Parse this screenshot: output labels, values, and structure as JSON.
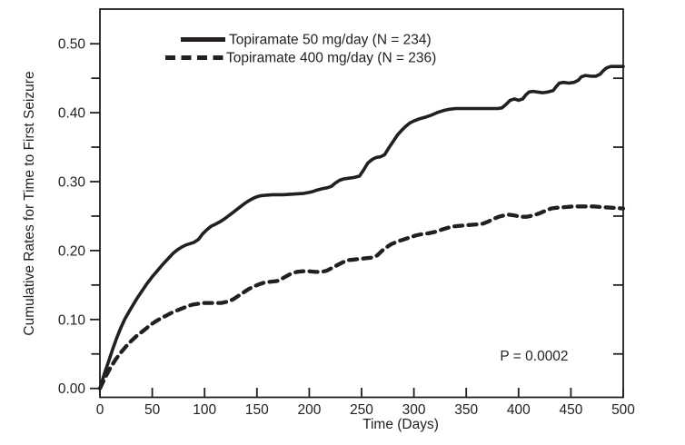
{
  "chart_data": {
    "type": "line",
    "title": "",
    "xlabel": "Time (Days)",
    "ylabel": "Cumulative Rates for Time to First Seizure",
    "annotation": "P = 0.0002",
    "xlim": [
      0,
      500
    ],
    "ylim": [
      0,
      0.55
    ],
    "grid": false,
    "legend_position": "top-left-inside",
    "line_color": "#231f20",
    "x_ticks": [
      0,
      50,
      100,
      150,
      200,
      250,
      300,
      350,
      400,
      450,
      500
    ],
    "x_tick_labels": [
      "0",
      "50",
      "100",
      "150",
      "200",
      "250",
      "300",
      "350",
      "400",
      "450",
      "500"
    ],
    "y_ticks": [
      0,
      0.1,
      0.2,
      0.3,
      0.4,
      0.5
    ],
    "y_tick_labels": [
      "0.00",
      "0.10",
      "0.20",
      "0.30",
      "0.40",
      "0.50"
    ],
    "y_minor_ticks": [
      0.05,
      0.15,
      0.25,
      0.35,
      0.45
    ],
    "right_axis_ticks": [
      0.05,
      0.15,
      0.25,
      0.35,
      0.45
    ],
    "series": [
      {
        "name": "Topiramate 50 mg/day (N = 234)",
        "style": "solid",
        "points": [
          [
            0,
            0
          ],
          [
            4,
            0.02
          ],
          [
            8,
            0.038
          ],
          [
            12,
            0.056
          ],
          [
            16,
            0.073
          ],
          [
            20,
            0.088
          ],
          [
            24,
            0.101
          ],
          [
            28,
            0.112
          ],
          [
            32,
            0.122
          ],
          [
            36,
            0.132
          ],
          [
            40,
            0.141
          ],
          [
            45,
            0.152
          ],
          [
            50,
            0.162
          ],
          [
            55,
            0.171
          ],
          [
            60,
            0.18
          ],
          [
            65,
            0.188
          ],
          [
            70,
            0.196
          ],
          [
            74,
            0.201
          ],
          [
            78,
            0.205
          ],
          [
            82,
            0.208
          ],
          [
            86,
            0.21
          ],
          [
            90,
            0.212
          ],
          [
            94,
            0.216
          ],
          [
            98,
            0.224
          ],
          [
            102,
            0.23
          ],
          [
            106,
            0.235
          ],
          [
            110,
            0.238
          ],
          [
            115,
            0.242
          ],
          [
            120,
            0.247
          ],
          [
            126,
            0.254
          ],
          [
            132,
            0.261
          ],
          [
            138,
            0.268
          ],
          [
            143,
            0.273
          ],
          [
            148,
            0.277
          ],
          [
            152,
            0.279
          ],
          [
            156,
            0.28
          ],
          [
            165,
            0.281
          ],
          [
            175,
            0.281
          ],
          [
            185,
            0.282
          ],
          [
            195,
            0.283
          ],
          [
            202,
            0.285
          ],
          [
            208,
            0.288
          ],
          [
            213,
            0.29
          ],
          [
            217,
            0.291
          ],
          [
            221,
            0.293
          ],
          [
            225,
            0.298
          ],
          [
            229,
            0.302
          ],
          [
            233,
            0.304
          ],
          [
            238,
            0.305
          ],
          [
            243,
            0.306
          ],
          [
            248,
            0.308
          ],
          [
            252,
            0.317
          ],
          [
            256,
            0.327
          ],
          [
            260,
            0.332
          ],
          [
            264,
            0.335
          ],
          [
            268,
            0.336
          ],
          [
            272,
            0.339
          ],
          [
            276,
            0.349
          ],
          [
            280,
            0.358
          ],
          [
            284,
            0.367
          ],
          [
            288,
            0.374
          ],
          [
            292,
            0.38
          ],
          [
            296,
            0.385
          ],
          [
            300,
            0.388
          ],
          [
            305,
            0.391
          ],
          [
            310,
            0.393
          ],
          [
            316,
            0.396
          ],
          [
            322,
            0.4
          ],
          [
            328,
            0.403
          ],
          [
            334,
            0.405
          ],
          [
            340,
            0.406
          ],
          [
            350,
            0.406
          ],
          [
            360,
            0.406
          ],
          [
            370,
            0.406
          ],
          [
            380,
            0.406
          ],
          [
            384,
            0.407
          ],
          [
            388,
            0.412
          ],
          [
            392,
            0.418
          ],
          [
            396,
            0.42
          ],
          [
            400,
            0.418
          ],
          [
            404,
            0.42
          ],
          [
            407,
            0.426
          ],
          [
            410,
            0.43
          ],
          [
            414,
            0.431
          ],
          [
            418,
            0.43
          ],
          [
            423,
            0.429
          ],
          [
            428,
            0.43
          ],
          [
            433,
            0.432
          ],
          [
            436,
            0.438
          ],
          [
            439,
            0.443
          ],
          [
            443,
            0.444
          ],
          [
            448,
            0.443
          ],
          [
            453,
            0.444
          ],
          [
            457,
            0.447
          ],
          [
            460,
            0.452
          ],
          [
            464,
            0.454
          ],
          [
            469,
            0.453
          ],
          [
            474,
            0.453
          ],
          [
            478,
            0.456
          ],
          [
            481,
            0.461
          ],
          [
            484,
            0.465
          ],
          [
            488,
            0.467
          ],
          [
            494,
            0.467
          ],
          [
            500,
            0.467
          ]
        ]
      },
      {
        "name": "Topiramate 400 mg/day (N = 236)",
        "style": "dashed",
        "points": [
          [
            0,
            0
          ],
          [
            5,
            0.016
          ],
          [
            10,
            0.03
          ],
          [
            15,
            0.042
          ],
          [
            20,
            0.052
          ],
          [
            25,
            0.061
          ],
          [
            30,
            0.069
          ],
          [
            35,
            0.076
          ],
          [
            40,
            0.082
          ],
          [
            45,
            0.088
          ],
          [
            50,
            0.094
          ],
          [
            55,
            0.099
          ],
          [
            60,
            0.103
          ],
          [
            65,
            0.107
          ],
          [
            70,
            0.111
          ],
          [
            75,
            0.114
          ],
          [
            80,
            0.117
          ],
          [
            85,
            0.12
          ],
          [
            90,
            0.122
          ],
          [
            95,
            0.123
          ],
          [
            100,
            0.124
          ],
          [
            108,
            0.124
          ],
          [
            116,
            0.124
          ],
          [
            122,
            0.126
          ],
          [
            127,
            0.129
          ],
          [
            132,
            0.134
          ],
          [
            137,
            0.139
          ],
          [
            142,
            0.144
          ],
          [
            147,
            0.148
          ],
          [
            152,
            0.151
          ],
          [
            158,
            0.154
          ],
          [
            164,
            0.155
          ],
          [
            170,
            0.156
          ],
          [
            176,
            0.161
          ],
          [
            182,
            0.166
          ],
          [
            188,
            0.169
          ],
          [
            194,
            0.17
          ],
          [
            200,
            0.17
          ],
          [
            206,
            0.169
          ],
          [
            212,
            0.169
          ],
          [
            217,
            0.171
          ],
          [
            222,
            0.175
          ],
          [
            227,
            0.179
          ],
          [
            232,
            0.183
          ],
          [
            237,
            0.186
          ],
          [
            243,
            0.187
          ],
          [
            249,
            0.188
          ],
          [
            255,
            0.189
          ],
          [
            261,
            0.19
          ],
          [
            265,
            0.193
          ],
          [
            269,
            0.199
          ],
          [
            273,
            0.204
          ],
          [
            278,
            0.209
          ],
          [
            284,
            0.213
          ],
          [
            290,
            0.216
          ],
          [
            296,
            0.219
          ],
          [
            302,
            0.222
          ],
          [
            308,
            0.224
          ],
          [
            314,
            0.225
          ],
          [
            320,
            0.227
          ],
          [
            326,
            0.23
          ],
          [
            332,
            0.233
          ],
          [
            338,
            0.235
          ],
          [
            344,
            0.236
          ],
          [
            352,
            0.237
          ],
          [
            360,
            0.238
          ],
          [
            366,
            0.239
          ],
          [
            371,
            0.242
          ],
          [
            376,
            0.246
          ],
          [
            381,
            0.249
          ],
          [
            386,
            0.251
          ],
          [
            391,
            0.252
          ],
          [
            396,
            0.251
          ],
          [
            402,
            0.249
          ],
          [
            408,
            0.249
          ],
          [
            414,
            0.251
          ],
          [
            420,
            0.254
          ],
          [
            426,
            0.258
          ],
          [
            431,
            0.261
          ],
          [
            436,
            0.262
          ],
          [
            444,
            0.263
          ],
          [
            452,
            0.264
          ],
          [
            462,
            0.264
          ],
          [
            472,
            0.264
          ],
          [
            480,
            0.263
          ],
          [
            490,
            0.262
          ],
          [
            500,
            0.261
          ]
        ]
      }
    ]
  }
}
